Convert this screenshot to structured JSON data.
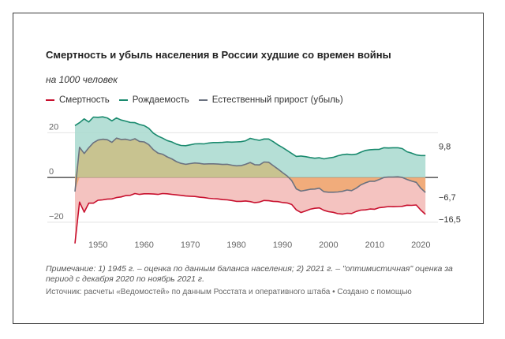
{
  "chart_data": {
    "type": "line",
    "title": "Смертность и убыль населения в России худшие со времен войны",
    "subtitle": "на 1000 человек",
    "ylim": [
      -25,
      30
    ],
    "xlim": [
      1945,
      2022
    ],
    "y_ticks": [
      {
        "value": 20,
        "label": "20"
      },
      {
        "value": 0,
        "label": "0"
      },
      {
        "value": -20,
        "label": "−20"
      }
    ],
    "x_ticks": [
      {
        "value": 1950,
        "label": "1950"
      },
      {
        "value": 1960,
        "label": "1960"
      },
      {
        "value": 1970,
        "label": "1970"
      },
      {
        "value": 1980,
        "label": "1980"
      },
      {
        "value": 1990,
        "label": "1990"
      },
      {
        "value": 2000,
        "label": "2000"
      },
      {
        "value": 2010,
        "label": "2010"
      },
      {
        "value": 2020,
        "label": "2020"
      }
    ],
    "grid": "horizontal",
    "legend_position": "top-left",
    "x": [
      1945,
      1946,
      1947,
      1948,
      1949,
      1950,
      1951,
      1952,
      1953,
      1954,
      1955,
      1956,
      1957,
      1958,
      1959,
      1960,
      1961,
      1962,
      1963,
      1964,
      1965,
      1966,
      1967,
      1968,
      1969,
      1970,
      1971,
      1972,
      1973,
      1974,
      1975,
      1976,
      1977,
      1978,
      1979,
      1980,
      1981,
      1982,
      1983,
      1984,
      1985,
      1986,
      1987,
      1988,
      1989,
      1990,
      1991,
      1992,
      1993,
      1994,
      1995,
      1996,
      1997,
      1998,
      1999,
      2000,
      2001,
      2002,
      2003,
      2004,
      2005,
      2006,
      2007,
      2008,
      2009,
      2010,
      2011,
      2012,
      2013,
      2014,
      2015,
      2016,
      2017,
      2018,
      2019,
      2020,
      2021
    ],
    "series": [
      {
        "name": "Смертность",
        "color": "#c8102e",
        "values": [
          -29.5,
          -11,
          -15.5,
          -11.5,
          -11.5,
          -10.2,
          -10,
          -9.7,
          -9.6,
          -9,
          -8.7,
          -8.1,
          -8,
          -7.2,
          -7.6,
          -7.3,
          -7.3,
          -7.4,
          -7.6,
          -7.2,
          -7.3,
          -7.6,
          -7.8,
          -8,
          -8.3,
          -8.4,
          -8.5,
          -8.8,
          -9,
          -9.3,
          -9.5,
          -9.6,
          -9.9,
          -10,
          -10.3,
          -10.7,
          -10.7,
          -10.5,
          -10.8,
          -11.3,
          -11,
          -10.3,
          -10.4,
          -10.7,
          -10.8,
          -11.2,
          -11.4,
          -12.1,
          -14.5,
          -15.7,
          -15,
          -14.2,
          -13.8,
          -13.6,
          -14.7,
          -15.3,
          -15.6,
          -16.2,
          -16.4,
          -16,
          -16.1,
          -15.2,
          -14.6,
          -14.5,
          -14.1,
          -14.2,
          -13.5,
          -13.3,
          -13.0,
          -13.1,
          -13.0,
          -12.9,
          -12.4,
          -12.5,
          -12.3,
          -14.6,
          -16.5
        ]
      },
      {
        "name": "Рождаемость",
        "color": "#1a8a6e",
        "values": [
          23.2,
          24.5,
          26.2,
          24.8,
          27,
          26.9,
          27.1,
          26.6,
          25.3,
          26.6,
          25.7,
          25.2,
          24.6,
          24.5,
          23.7,
          23.2,
          22,
          19.8,
          18.5,
          17.6,
          16.5,
          15.9,
          14.9,
          14.3,
          14.2,
          14.6,
          15,
          15.1,
          15,
          15.4,
          15.6,
          15.6,
          15.7,
          15.9,
          15.8,
          15.9,
          16,
          16.4,
          17.5,
          17,
          16.6,
          17.2,
          17.2,
          16,
          14.6,
          13.4,
          12.1,
          10.7,
          9.4,
          9.6,
          9.3,
          8.9,
          8.6,
          8.8,
          8.3,
          8.7,
          9,
          9.7,
          10.2,
          10.4,
          10.2,
          10.4,
          11.3,
          12.1,
          12.4,
          12.5,
          12.6,
          13.3,
          13.2,
          13.3,
          13.3,
          12.9,
          11.5,
          10.9,
          10.1,
          9.8,
          9.8
        ]
      },
      {
        "name": "Естественный прирост (убыль)",
        "color": "#6b7280",
        "values": [
          -6.3,
          13.5,
          10.7,
          13.3,
          15.5,
          16.7,
          17.1,
          16.9,
          15.7,
          17.6,
          17,
          17.1,
          16.6,
          17.3,
          16.1,
          15.9,
          14.7,
          12.4,
          10.9,
          10.4,
          9.2,
          8.3,
          7.1,
          6.3,
          5.9,
          6.2,
          6.5,
          6.3,
          6,
          6.1,
          6.1,
          6,
          5.8,
          5.9,
          5.5,
          5.2,
          5.3,
          5.9,
          6.7,
          5.7,
          5.6,
          6.9,
          6.8,
          5.3,
          3.8,
          2.2,
          0.7,
          -1.4,
          -5.1,
          -6.1,
          -5.7,
          -5.3,
          -5.2,
          -4.8,
          -6.4,
          -6.6,
          -6.6,
          -6.5,
          -6.2,
          -5.6,
          -5.9,
          -4.8,
          -3.3,
          -2.4,
          -1.7,
          -1.7,
          -0.9,
          0,
          0.2,
          0.2,
          0.3,
          0,
          -0.9,
          -1.6,
          -2.2,
          -4.8,
          -6.7
        ]
      }
    ],
    "end_labels": [
      {
        "series": 1,
        "text": "9,8"
      },
      {
        "series": 2,
        "text": "−6,7"
      },
      {
        "series": 0,
        "text": "−16,5"
      }
    ],
    "fill_colors": {
      "births_area": "#a8d9cf",
      "deaths_area": "#f2b8b5",
      "growth_positive": "#c5c08a",
      "growth_negative": "#f0a874"
    }
  },
  "texts": {
    "note": "Примечание: 1) 1945 г. – оценка по данным баланса населения; 2) 2021 г. – \"оптимистичная\" оценка за период с декабря 2020 по ноябрь 2021 г.",
    "source": "Источник: расчеты «Ведомостей» по данным Росстата и оперативного штаба • Создано с помощью"
  }
}
